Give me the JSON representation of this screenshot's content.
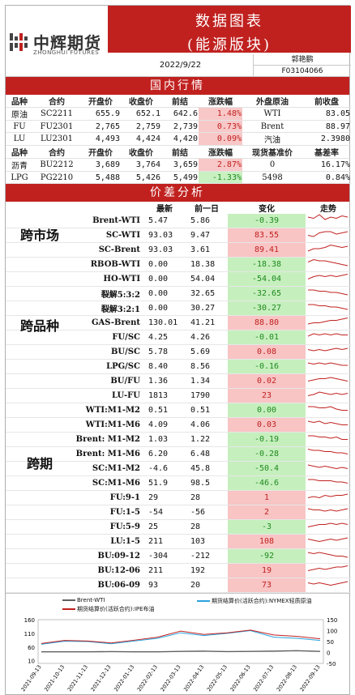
{
  "header": {
    "logo_cn": "中辉期货",
    "logo_en": "ZHONGHUI FUTURES",
    "title_line1": "数据图表",
    "title_line2": "(能源版块)",
    "date": "2022/9/22",
    "author": "郭艳鹏",
    "license": "F03104066",
    "accent": "#c0211f"
  },
  "domestic": {
    "section_title": "国内行情",
    "header1": [
      "品种",
      "合约",
      "开盘价",
      "收盘价",
      "前结",
      "涨跌幅",
      "外盘原油",
      "前收盘"
    ],
    "rows1": [
      [
        "原油",
        "SC2211",
        "655.9",
        "652.1",
        "642.6",
        "1.48%",
        "WTI",
        "83.05"
      ],
      [
        "FU",
        "FU2301",
        "2,765",
        "2,759",
        "2,739",
        "0.73%",
        "Brent",
        "88.97"
      ],
      [
        "LU",
        "LU2301",
        "4,493",
        "4,424",
        "4,420",
        "0.09%",
        "汽油",
        "2.3980"
      ]
    ],
    "header2": [
      "品种",
      "合约",
      "开盘价",
      "收盘价",
      "前结",
      "涨跌幅",
      "现货基准价",
      "基差率"
    ],
    "rows2": [
      [
        "沥青",
        "BU2212",
        "3,689",
        "3,764",
        "3,659",
        "2.87%",
        "0",
        "16.17%"
      ],
      [
        "LPG",
        "PG2210",
        "5,488",
        "5,426",
        "5,499",
        "-1.33%",
        "5498",
        "0.84%"
      ]
    ],
    "dir1": [
      "up",
      "up",
      "up"
    ],
    "dir2": [
      "up",
      "dn"
    ]
  },
  "spread": {
    "section_title": "价差分析",
    "cols": [
      "最新",
      "前一日",
      "变化",
      "走势"
    ],
    "groups": [
      "跨市场",
      "跨品种",
      "跨期"
    ],
    "rows": [
      {
        "name": "Brent-WTI",
        "latest": "5.47",
        "prev": "5.86",
        "chg": "-0.39",
        "dir": "dn",
        "trend": [
          6,
          5,
          8,
          4,
          6,
          5,
          7,
          6
        ]
      },
      {
        "name": "SC-WTI",
        "latest": "93.03",
        "prev": "9.47",
        "chg": "83.55",
        "dir": "up",
        "trend": [
          3,
          2,
          5,
          6,
          6,
          4,
          5,
          6
        ]
      },
      {
        "name": "SC-Brent",
        "latest": "93.03",
        "prev": "3.61",
        "chg": "89.41",
        "dir": "up",
        "trend": [
          2,
          4,
          4,
          5,
          7,
          6,
          5,
          6
        ]
      },
      {
        "name": "RBOB-WTI",
        "latest": "0.00",
        "prev": "18.38",
        "chg": "-18.38",
        "dir": "dn",
        "trend": [
          5,
          7,
          6,
          6,
          5,
          4,
          3,
          2
        ]
      },
      {
        "name": "HO-WTI",
        "latest": "0.00",
        "prev": "54.04",
        "chg": "-54.04",
        "dir": "dn",
        "trend": [
          3,
          5,
          6,
          5,
          6,
          5,
          6,
          7
        ]
      },
      {
        "name": "裂解5:3:2",
        "latest": "0.00",
        "prev": "32.65",
        "chg": "-32.65",
        "dir": "dn",
        "trend": [
          6,
          6,
          5,
          5,
          4,
          4,
          3,
          2
        ]
      },
      {
        "name": "裂解3:2:1",
        "latest": "0.00",
        "prev": "30.27",
        "chg": "-30.27",
        "dir": "dn",
        "trend": [
          6,
          6,
          5,
          5,
          4,
          4,
          3,
          2
        ]
      },
      {
        "name": "GAS-Brent",
        "latest": "130.01",
        "prev": "41.21",
        "chg": "88.80",
        "dir": "up",
        "trend": [
          2,
          3,
          3,
          4,
          5,
          5,
          6,
          7
        ]
      },
      {
        "name": "FU/SC",
        "latest": "4.25",
        "prev": "4.26",
        "chg": "-0.01",
        "dir": "dn",
        "trend": [
          4,
          6,
          5,
          6,
          5,
          6,
          5,
          5
        ]
      },
      {
        "name": "BU/SC",
        "latest": "5.78",
        "prev": "5.69",
        "chg": "0.08",
        "dir": "up",
        "trend": [
          5,
          4,
          5,
          4,
          5,
          6,
          5,
          6
        ]
      },
      {
        "name": "LPG/SC",
        "latest": "8.40",
        "prev": "8.56",
        "chg": "-0.16",
        "dir": "dn",
        "trend": [
          6,
          5,
          6,
          5,
          6,
          5,
          4,
          4
        ]
      },
      {
        "name": "BU/FU",
        "latest": "1.36",
        "prev": "1.34",
        "chg": "0.02",
        "dir": "up",
        "trend": [
          3,
          4,
          5,
          5,
          6,
          5,
          4,
          3
        ]
      },
      {
        "name": "LU-FU",
        "latest": "1813",
        "prev": "1790",
        "chg": "23",
        "dir": "up",
        "trend": [
          3,
          4,
          6,
          5,
          4,
          5,
          4,
          5
        ]
      },
      {
        "name": "WTI:M1-M2",
        "latest": "0.51",
        "prev": "0.51",
        "chg": "0.00",
        "dir": "dn",
        "trend": [
          6,
          6,
          5,
          5,
          6,
          4,
          3,
          3
        ]
      },
      {
        "name": "WTI:M1-M6",
        "latest": "4.09",
        "prev": "4.06",
        "chg": "0.03",
        "dir": "up",
        "trend": [
          6,
          5,
          6,
          4,
          5,
          4,
          3,
          3
        ]
      },
      {
        "name": "Brent: M1-M2",
        "latest": "1.03",
        "prev": "1.22",
        "chg": "-0.19",
        "dir": "dn",
        "trend": [
          6,
          6,
          5,
          5,
          4,
          5,
          3,
          3
        ]
      },
      {
        "name": "Brent: M1-M6",
        "latest": "6.20",
        "prev": "6.48",
        "chg": "-0.28",
        "dir": "dn",
        "trend": [
          7,
          6,
          6,
          5,
          5,
          4,
          4,
          3
        ]
      },
      {
        "name": "SC:M1-M2",
        "latest": "-4.6",
        "prev": "45.8",
        "chg": "-50.4",
        "dir": "dn",
        "trend": [
          6,
          5,
          4,
          5,
          4,
          3,
          4,
          3
        ]
      },
      {
        "name": "SC:M1-M6",
        "latest": "51.9",
        "prev": "98.5",
        "chg": "-46.6",
        "dir": "dn",
        "trend": [
          6,
          6,
          5,
          5,
          5,
          4,
          4,
          3
        ]
      },
      {
        "name": "FU:9-1",
        "latest": "29",
        "prev": "28",
        "chg": "1",
        "dir": "up",
        "trend": [
          3,
          4,
          3,
          5,
          4,
          5,
          5,
          6
        ]
      },
      {
        "name": "FU:1-5",
        "latest": "-54",
        "prev": "-56",
        "chg": "2",
        "dir": "up",
        "trend": [
          6,
          5,
          5,
          4,
          5,
          4,
          5,
          6
        ]
      },
      {
        "name": "FU:5-9",
        "latest": "25",
        "prev": "28",
        "chg": "-3",
        "dir": "dn",
        "trend": [
          3,
          4,
          5,
          5,
          6,
          5,
          6,
          5
        ]
      },
      {
        "name": "LU:1-5",
        "latest": "211",
        "prev": "103",
        "chg": "108",
        "dir": "up",
        "trend": [
          5,
          4,
          3,
          4,
          5,
          4,
          5,
          6
        ]
      },
      {
        "name": "BU:09-12",
        "latest": "-304",
        "prev": "-212",
        "chg": "-92",
        "dir": "dn",
        "trend": [
          6,
          5,
          6,
          5,
          4,
          3,
          3,
          2
        ]
      },
      {
        "name": "BU:12-06",
        "latest": "211",
        "prev": "192",
        "chg": "19",
        "dir": "up",
        "trend": [
          3,
          4,
          5,
          4,
          5,
          6,
          6,
          7
        ]
      },
      {
        "name": "BU:06-09",
        "latest": "93",
        "prev": "20",
        "chg": "73",
        "dir": "up",
        "trend": [
          5,
          4,
          5,
          4,
          3,
          4,
          5,
          6
        ]
      }
    ]
  },
  "chart_data": {
    "type": "line",
    "legend": [
      "Brent-WTI",
      "期货结算价(活跃合约):NYMEX轻质原油",
      "期货结算价(活跃合约):IPE布油"
    ],
    "x": [
      "2021-09-13",
      "2021-10-13",
      "2021-11-13",
      "2021-12-13",
      "2022-01-13",
      "2022-02-13",
      "2022-03-13",
      "2022-04-13",
      "2022-05-13",
      "2022-06-13",
      "2022-07-13",
      "2022-08-13",
      "2022-09-13"
    ],
    "left_ylim": [
      0,
      160
    ],
    "left_ticks": [
      "160",
      "110",
      "60",
      "10"
    ],
    "right_ylim": [
      -50,
      150
    ],
    "right_ticks": [
      "150",
      "100",
      "50",
      "0",
      "-50"
    ],
    "series": [
      {
        "name": "Brent-WTI",
        "axis": "right",
        "values": [
          3,
          3,
          3,
          4,
          3,
          3,
          5,
          6,
          4,
          5,
          6,
          8,
          5
        ]
      },
      {
        "name": "期货结算价(活跃合约):NYMEX轻质原油",
        "axis": "left",
        "values": [
          70,
          81,
          80,
          72,
          82,
          92,
          112,
          102,
          110,
          120,
          96,
          92,
          84
        ]
      },
      {
        "name": "期货结算价(活跃合约):IPE布油",
        "axis": "left",
        "values": [
          73,
          84,
          82,
          75,
          85,
          96,
          118,
          106,
          112,
          122,
          104,
          99,
          90
        ]
      }
    ],
    "colors": {
      "brent_wti": "#606060",
      "nymex": "#2aa3df",
      "ipe": "#c0211f"
    }
  }
}
